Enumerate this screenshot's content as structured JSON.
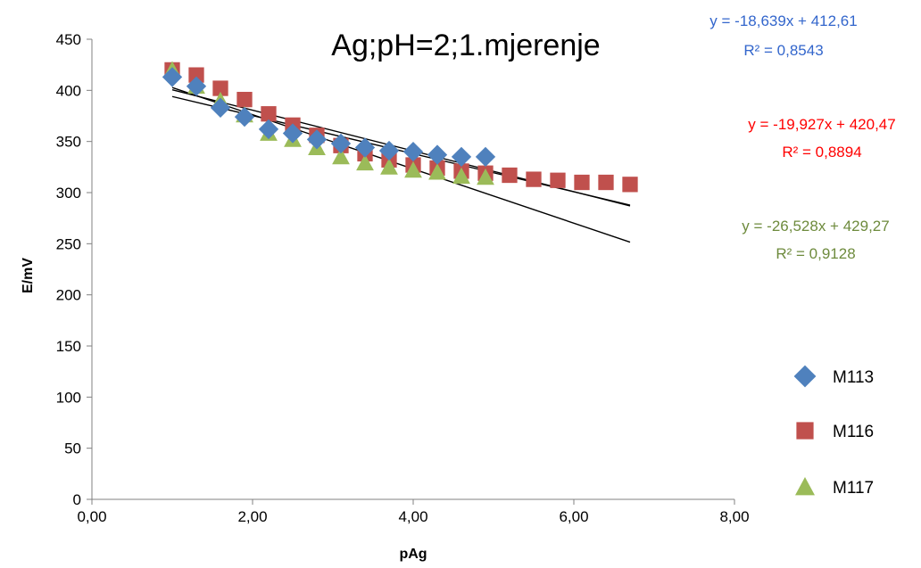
{
  "chart_data": {
    "type": "scatter",
    "title": "Ag;pH=2;1.mjerenje",
    "xlabel": "pAg",
    "ylabel": "E/mV",
    "xlim": [
      0,
      8
    ],
    "ylim": [
      0,
      450
    ],
    "x_ticks": [
      "0,00",
      "2,00",
      "4,00",
      "6,00",
      "8,00"
    ],
    "x_tick_values": [
      0,
      2,
      4,
      6,
      8
    ],
    "y_ticks": [
      "0",
      "50",
      "100",
      "150",
      "200",
      "250",
      "300",
      "350",
      "400",
      "450"
    ],
    "y_tick_values": [
      0,
      50,
      100,
      150,
      200,
      250,
      300,
      350,
      400,
      450
    ],
    "grid": false,
    "legend_position": "bottom-right",
    "series": [
      {
        "name": "M113",
        "marker": "diamond",
        "color": "#4F81BD",
        "x": [
          1.0,
          1.3,
          1.6,
          1.9,
          2.2,
          2.5,
          2.8,
          3.1,
          3.4,
          3.7,
          4.0,
          4.3,
          4.6,
          4.9
        ],
        "y": [
          413,
          404,
          383,
          374,
          362,
          358,
          352,
          348,
          344,
          341,
          340,
          337,
          335,
          335
        ],
        "trendline": {
          "slope": -18.639,
          "intercept": 412.61,
          "x_range": [
            1.0,
            6.7
          ]
        },
        "equation": "y = -18,639x + 412,61",
        "r2": "R² = 0,8543"
      },
      {
        "name": "M116",
        "marker": "square",
        "color": "#C0504D",
        "x": [
          1.0,
          1.3,
          1.6,
          1.9,
          2.2,
          2.5,
          2.8,
          3.1,
          3.4,
          3.7,
          4.0,
          4.3,
          4.6,
          4.9,
          5.2,
          5.5,
          5.8,
          6.1,
          6.4,
          6.7
        ],
        "y": [
          420,
          415,
          402,
          391,
          377,
          366,
          356,
          346,
          338,
          332,
          327,
          324,
          321,
          319,
          317,
          313,
          312,
          310,
          310,
          308
        ],
        "trendline": {
          "slope": -19.927,
          "intercept": 420.47,
          "x_range": [
            1.0,
            6.7
          ]
        },
        "equation": "y = -19,927x + 420,47",
        "r2": "R² = 0,8894"
      },
      {
        "name": "M117",
        "marker": "triangle",
        "color": "#9BBB59",
        "x": [
          1.0,
          1.3,
          1.6,
          1.9,
          2.2,
          2.5,
          2.8,
          3.1,
          3.4,
          3.7,
          4.0,
          4.3,
          4.6,
          4.9
        ],
        "y": [
          420,
          404,
          390,
          376,
          358,
          352,
          344,
          335,
          329,
          325,
          322,
          320,
          316,
          315
        ],
        "trendline": {
          "slope": -26.528,
          "intercept": 429.27,
          "x_range": [
            1.0,
            6.7
          ]
        },
        "equation": "y = -26,528x + 429,27",
        "r2": "R² = 0,9128"
      }
    ]
  },
  "colors": {
    "eq_blue": "#3366CC",
    "eq_red": "#FF0000",
    "eq_green": "#6E8B3D",
    "trendline": "#000000",
    "axis": "#808080"
  }
}
